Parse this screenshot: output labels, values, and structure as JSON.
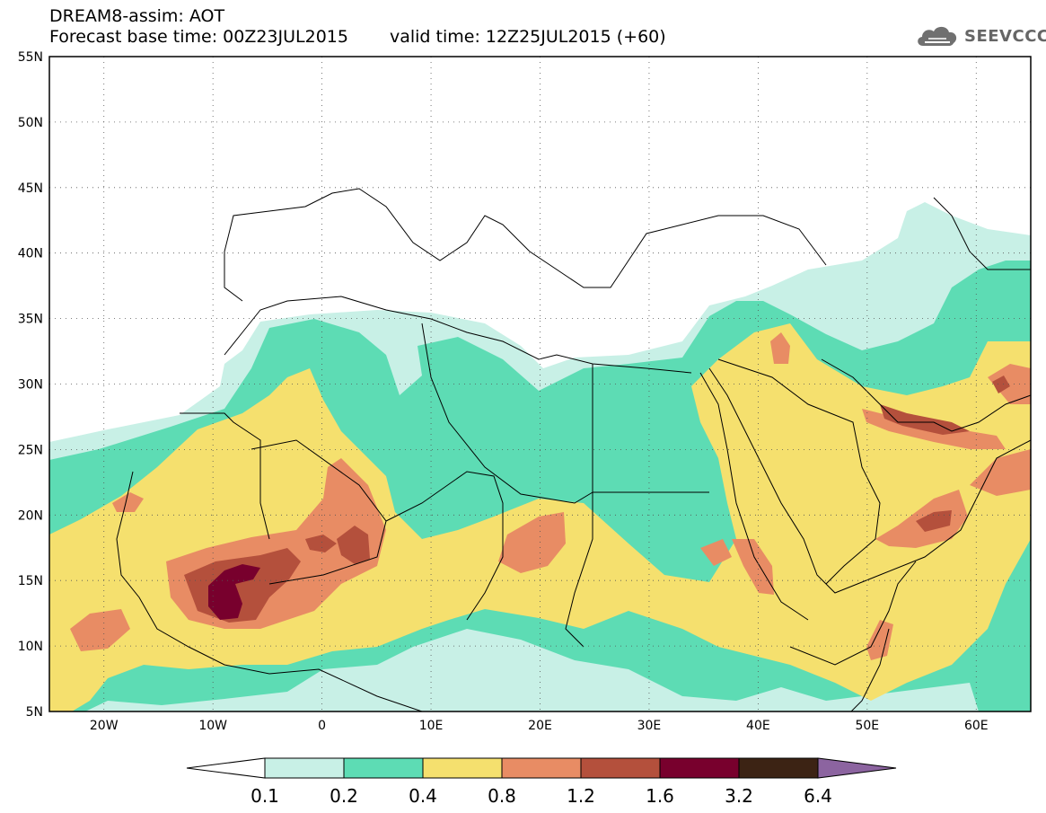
{
  "header": {
    "line1": "DREAM8-assim: AOT",
    "base_label": "Forecast base time: 00Z23JUL2015",
    "valid_label": "valid time: 12Z25JUL2015 (+60)"
  },
  "logo": {
    "text": "SEEVCCC",
    "icon": "cloud-icon"
  },
  "map": {
    "lon_labels": [
      "20W",
      "10W",
      "0",
      "10E",
      "20E",
      "30E",
      "40E",
      "50E",
      "60E"
    ],
    "lon_values": [
      -20,
      -10,
      0,
      10,
      20,
      30,
      40,
      50,
      60
    ],
    "lat_labels": [
      "55N",
      "50N",
      "45N",
      "40N",
      "35N",
      "30N",
      "25N",
      "20N",
      "15N",
      "10N",
      "5N"
    ],
    "lat_values": [
      55,
      50,
      45,
      40,
      35,
      30,
      25,
      20,
      15,
      10,
      5
    ],
    "lon_range": [
      -25,
      65
    ],
    "lat_range": [
      5,
      55
    ],
    "grid": "dotted"
  },
  "colorbar": {
    "labels": [
      "0.1",
      "0.2",
      "0.4",
      "0.8",
      "1.2",
      "1.6",
      "3.2",
      "6.4"
    ],
    "colors": [
      "#ffffff",
      "#c8f0e6",
      "#5ddcb4",
      "#f5e06e",
      "#e88c64",
      "#b4503c",
      "#78002d",
      "#3c2314",
      "#8c64a0"
    ]
  }
}
